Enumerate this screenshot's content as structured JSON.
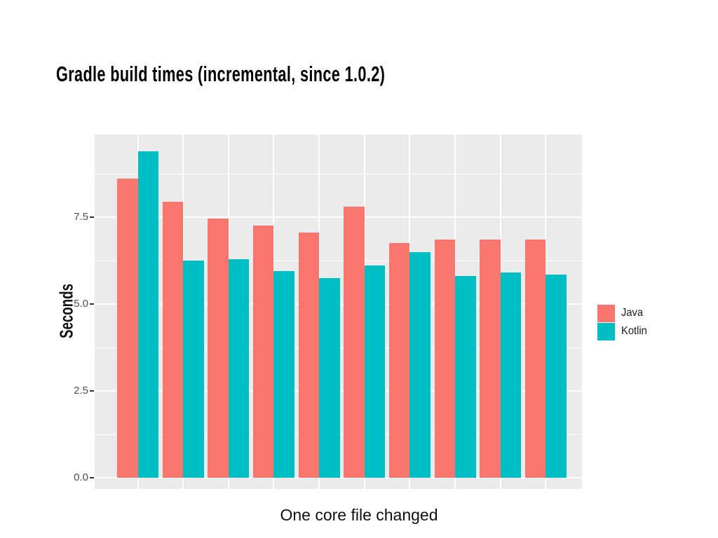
{
  "title": "Gradle build times (incremental, since 1.0.2)",
  "caption": "One core file changed",
  "legend": {
    "items": [
      {
        "label": "Java",
        "color": "#F8766D"
      },
      {
        "label": "Kotlin",
        "color": "#00BFC4"
      }
    ]
  },
  "colors": {
    "java": "#F8766D",
    "kotlin": "#00BFC4",
    "panel_background": "#EBEBEB",
    "gridline": "#FFFFFF",
    "tick_label": "#4D4D4D"
  },
  "chart_data": {
    "type": "bar",
    "title": "Gradle build times (incremental, since 1.0.2)",
    "caption": "One core file changed",
    "ylabel": "Seconds",
    "categories": [
      1,
      2,
      3,
      4,
      5,
      6,
      7,
      8,
      9,
      10
    ],
    "x_axis": {
      "tick_labels_visible": false
    },
    "series": [
      {
        "name": "Java",
        "color": "#F8766D",
        "values": [
          8.6,
          7.95,
          7.45,
          7.25,
          7.05,
          7.8,
          6.75,
          6.85,
          6.85,
          6.85
        ]
      },
      {
        "name": "Kotlin",
        "color": "#00BFC4",
        "values": [
          9.4,
          6.25,
          6.3,
          5.95,
          5.75,
          6.1,
          6.5,
          5.8,
          5.9,
          5.85
        ]
      }
    ],
    "ylim": [
      0,
      9.9
    ],
    "yticks": [
      0,
      2.5,
      5,
      7.5
    ],
    "ytick_labels": [
      "0.0",
      "2.5",
      "5.0",
      "7.5"
    ],
    "minor_yticks": [
      1.25,
      3.75,
      6.25,
      8.75
    ],
    "grid": "white major+minor horizontal, white vertical at group centers, on gray panel",
    "legend_position": "right",
    "panel_background": "#EBEBEB",
    "bar_grouping": "dodged pairs, bars in a pair touching"
  }
}
